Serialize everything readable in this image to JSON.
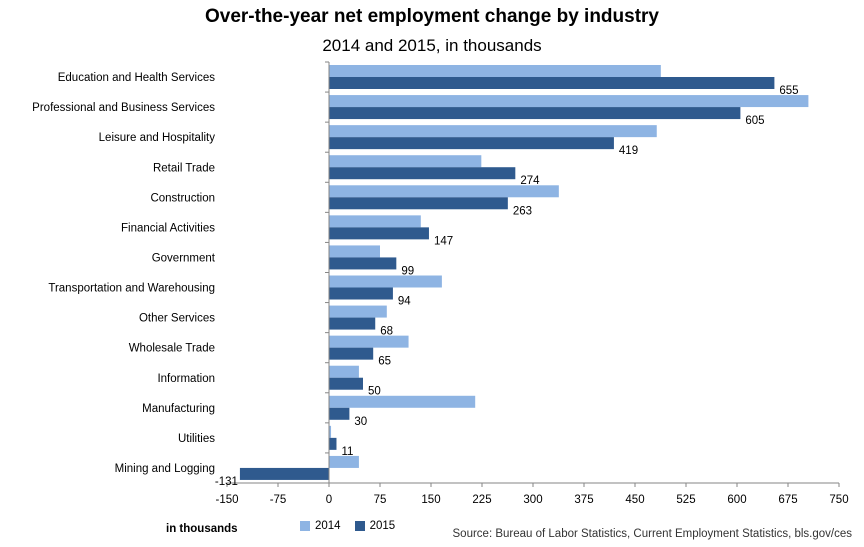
{
  "chart_data": {
    "type": "bar",
    "orientation": "horizontal",
    "title": "Over-the-year net employment change by industry",
    "subtitle": "2014 and 2015, in thousands",
    "xlabel": "in thousands",
    "source": "Source: Bureau of Labor Statistics, Current Employment Statistics, bls.gov/ces",
    "xlim": [
      -150,
      750
    ],
    "xticks": [
      -150,
      -75,
      0,
      75,
      150,
      225,
      300,
      375,
      450,
      525,
      600,
      675,
      750
    ],
    "categories": [
      "Education and Health Services",
      "Professional and Business Services",
      "Leisure and Hospitality",
      "Retail Trade",
      "Construction",
      "Financial Activities",
      "Government",
      "Transportation and Warehousing",
      "Other Services",
      "Wholesale Trade",
      "Information",
      "Manufacturing",
      "Utilities",
      "Mining and Logging"
    ],
    "series": [
      {
        "name": "2014",
        "color": "#8eb4e3",
        "values": [
          488,
          705,
          482,
          224,
          338,
          135,
          75,
          166,
          85,
          117,
          44,
          215,
          3,
          44
        ]
      },
      {
        "name": "2015",
        "color": "#2f5a8e",
        "labeled": true,
        "values": [
          655,
          605,
          419,
          274,
          263,
          147,
          99,
          94,
          68,
          65,
          50,
          30,
          11,
          -131
        ]
      }
    ]
  }
}
